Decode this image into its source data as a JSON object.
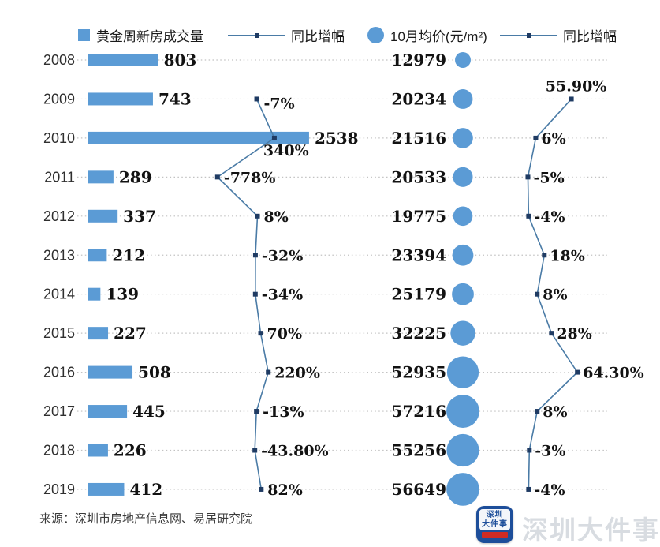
{
  "colors": {
    "bar_blue": "#5B9BD5",
    "line_blue": "#4a7ba6",
    "marker_navy": "#1f3b63",
    "grid_dot": "#c2c2c2"
  },
  "chart_data": {
    "type": "combo-bar-line-bubble",
    "categories": [
      "2008",
      "2009",
      "2010",
      "2011",
      "2012",
      "2013",
      "2014",
      "2015",
      "2016",
      "2017",
      "2018",
      "2019"
    ],
    "grid": "dotted-horizontal-leaders",
    "legend_position": "top",
    "series": [
      {
        "name": "黄金周新房成交量",
        "type": "bar",
        "values": [
          803,
          743,
          2538,
          289,
          337,
          212,
          139,
          227,
          508,
          445,
          226,
          412
        ],
        "labels": [
          "803",
          "743",
          "2538",
          "289",
          "337",
          "212",
          "139",
          "227",
          "508",
          "445",
          "226",
          "412"
        ]
      },
      {
        "name": "同比增幅",
        "type": "line",
        "values": [
          null,
          -7,
          340,
          -778,
          8,
          -32,
          -34,
          70,
          220,
          -13,
          -43.8,
          82
        ],
        "labels": [
          "",
          "-7%",
          "340%",
          "-778%",
          "8%",
          "-32%",
          "-34%",
          "70%",
          "220%",
          "-13%",
          "-43.80%",
          "82%"
        ]
      },
      {
        "name": "10月均价(元/m²)",
        "type": "bubble",
        "values": [
          12979,
          20234,
          21516,
          20533,
          19775,
          23394,
          25179,
          32225,
          52935,
          57216,
          55256,
          56649
        ],
        "labels": [
          "12979",
          "20234",
          "21516",
          "20533",
          "19775",
          "23394",
          "25179",
          "32225",
          "52935",
          "57216",
          "55256",
          "56649"
        ]
      },
      {
        "name": "同比增幅",
        "type": "line",
        "values": [
          null,
          55.9,
          6,
          -5,
          -4,
          18,
          8,
          28,
          64.3,
          8,
          -3,
          -4
        ],
        "labels": [
          "",
          "55.90%",
          "6%",
          "-5%",
          "-4%",
          "18%",
          "8%",
          "28%",
          "64.30%",
          "8%",
          "-3%",
          "-4%"
        ]
      }
    ]
  },
  "footer": {
    "source": "来源：深圳市房地产信息网、易居研究院",
    "watermark": "深圳大件事",
    "logo_line1": "深圳",
    "logo_line2": "大件事"
  }
}
